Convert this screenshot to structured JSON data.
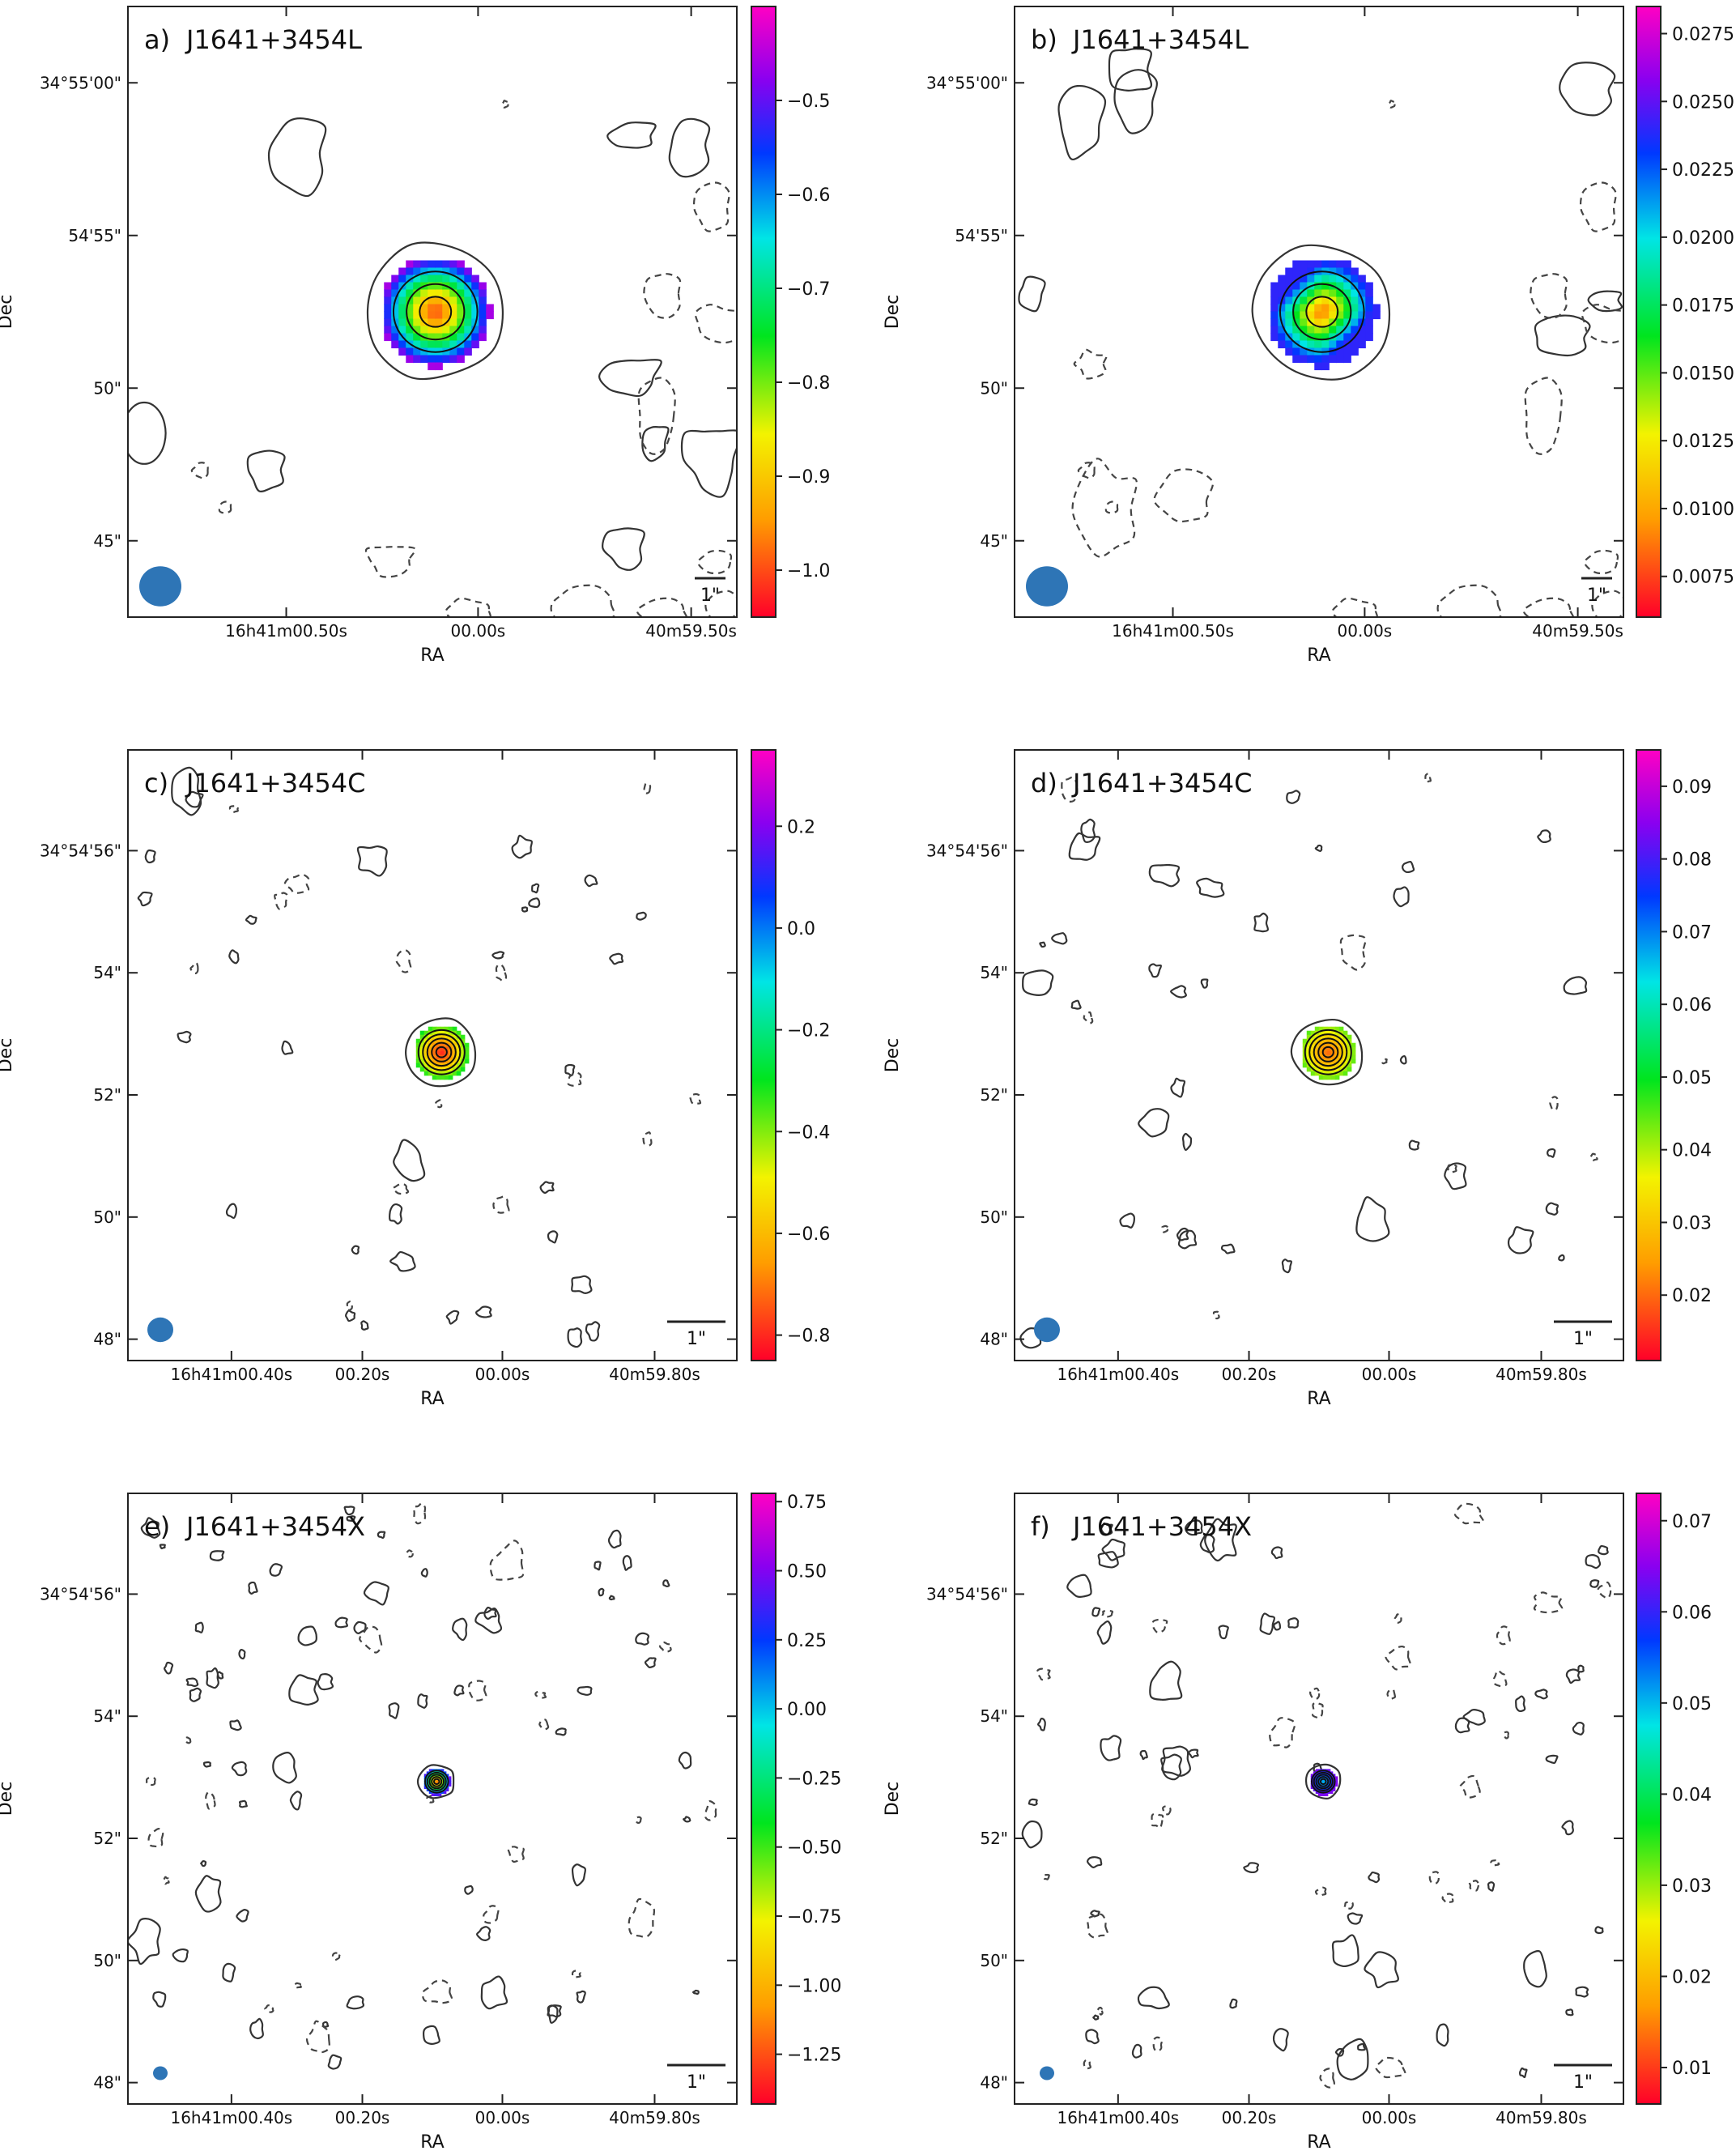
{
  "figure_title": "",
  "chart_data": [
    {
      "id": "a",
      "type": "heatmap",
      "label": "a)",
      "title": "J1641+3454L",
      "xlabel": "RA",
      "ylabel": "Dec",
      "xticks": [
        "16h41m00.50s",
        "00.00s",
        "40m59.50s"
      ],
      "yticks": [
        "34°55'00\"",
        "54'55\"",
        "50\"",
        "45\""
      ],
      "scalebar_label": "1\"",
      "colorbar": {
        "colormap": "gist_rainbow_r",
        "min": -1.05,
        "max": -0.4,
        "ticks": [
          -0.5,
          -0.6,
          -0.7,
          -0.8,
          -0.9,
          -1.0
        ],
        "tick_labels": [
          "−0.5",
          "−0.6",
          "−0.7",
          "−0.8",
          "−0.9",
          "−1.0"
        ]
      },
      "source_map": {
        "center_value": -1.0,
        "edge_value": -0.45,
        "pattern": "radial"
      },
      "beam": "large",
      "panel_kind": "L"
    },
    {
      "id": "b",
      "type": "heatmap",
      "label": "b)",
      "title": "J1641+3454L",
      "xlabel": "RA",
      "ylabel": "Dec",
      "xticks": [
        "16h41m00.50s",
        "00.00s",
        "40m59.50s"
      ],
      "yticks": [
        "34°55'00\"",
        "54'55\"",
        "50\"",
        "45\""
      ],
      "scalebar_label": "1\"",
      "colorbar": {
        "colormap": "gist_rainbow_r",
        "min": 0.006,
        "max": 0.0285,
        "ticks": [
          0.0275,
          0.025,
          0.0225,
          0.02,
          0.0175,
          0.015,
          0.0125,
          0.01,
          0.0075
        ],
        "tick_labels": [
          "0.0275",
          "0.0250",
          "0.0225",
          "0.0200",
          "0.0175",
          "0.0150",
          "0.0125",
          "0.0100",
          "0.0075"
        ]
      },
      "source_map": {
        "center_value": 0.008,
        "edge_value": 0.024,
        "pattern": "error"
      },
      "beam": "large",
      "panel_kind": "L"
    },
    {
      "id": "c",
      "type": "heatmap",
      "label": "c)",
      "title": "J1641+3454C",
      "xlabel": "RA",
      "ylabel": "Dec",
      "xticks": [
        "16h41m00.40s",
        "00.20s",
        "00.00s",
        "40m59.80s"
      ],
      "yticks": [
        "34°54'56\"",
        "54\"",
        "52\"",
        "50\"",
        "48\""
      ],
      "scalebar_label": "1\"",
      "colorbar": {
        "colormap": "gist_rainbow_r",
        "min": -0.85,
        "max": 0.35,
        "ticks": [
          0.2,
          0.0,
          -0.2,
          -0.4,
          -0.6,
          -0.8
        ],
        "tick_labels": [
          "0.2",
          "0.0",
          "−0.2",
          "−0.4",
          "−0.6",
          "−0.8"
        ]
      },
      "source_map": {
        "center_value": -0.8,
        "edge_value": -0.3,
        "pattern": "radial"
      },
      "beam": "medium",
      "panel_kind": "C"
    },
    {
      "id": "d",
      "type": "heatmap",
      "label": "d)",
      "title": "J1641+3454C",
      "xlabel": "RA",
      "ylabel": "Dec",
      "xticks": [
        "16h41m00.40s",
        "00.20s",
        "00.00s",
        "40m59.80s"
      ],
      "yticks": [
        "34°54'56\"",
        "54\"",
        "52\"",
        "50\"",
        "48\""
      ],
      "scalebar_label": "1\"",
      "colorbar": {
        "colormap": "gist_rainbow_r",
        "min": 0.011,
        "max": 0.095,
        "ticks": [
          0.09,
          0.08,
          0.07,
          0.06,
          0.05,
          0.04,
          0.03,
          0.02
        ],
        "tick_labels": [
          "0.09",
          "0.08",
          "0.07",
          "0.06",
          "0.05",
          "0.04",
          "0.03",
          "0.02"
        ]
      },
      "source_map": {
        "center_value": 0.02,
        "edge_value": 0.045,
        "pattern": "radial"
      },
      "beam": "medium",
      "panel_kind": "C"
    },
    {
      "id": "e",
      "type": "heatmap",
      "label": "e)",
      "title": "J1641+3454X",
      "xlabel": "RA",
      "ylabel": "Dec",
      "xticks": [
        "16h41m00.40s",
        "00.20s",
        "00.00s",
        "40m59.80s"
      ],
      "yticks": [
        "34°54'56\"",
        "54\"",
        "52\"",
        "50\"",
        "48\""
      ],
      "scalebar_label": "1\"",
      "colorbar": {
        "colormap": "gist_rainbow_r",
        "min": -1.43,
        "max": 0.78,
        "ticks": [
          0.75,
          0.5,
          0.25,
          0.0,
          -0.25,
          -0.5,
          -0.75,
          -1.0,
          -1.25
        ],
        "tick_labels": [
          "0.75",
          "0.50",
          "0.25",
          "0.00",
          "−0.25",
          "−0.50",
          "−0.75",
          "−1.00",
          "−1.25"
        ]
      },
      "source_map": {
        "center_value": -1.2,
        "edge_value": 0.5,
        "pattern": "radial"
      },
      "beam": "small",
      "panel_kind": "X"
    },
    {
      "id": "f",
      "type": "heatmap",
      "label": "f)",
      "title": "J1641+3454X",
      "xlabel": "RA",
      "ylabel": "Dec",
      "xticks": [
        "16h41m00.40s",
        "00.20s",
        "00.00s",
        "40m59.80s"
      ],
      "yticks": [
        "34°54'56\"",
        "54\"",
        "52\"",
        "50\"",
        "48\""
      ],
      "scalebar_label": "1\"",
      "colorbar": {
        "colormap": "gist_rainbow_r",
        "min": 0.006,
        "max": 0.073,
        "ticks": [
          0.07,
          0.06,
          0.05,
          0.04,
          0.03,
          0.02,
          0.01
        ],
        "tick_labels": [
          "0.07",
          "0.06",
          "0.05",
          "0.04",
          "0.03",
          "0.02",
          "0.01"
        ]
      },
      "source_map": {
        "center_value": 0.05,
        "edge_value": 0.065,
        "pattern": "radial"
      },
      "beam": "small",
      "panel_kind": "X"
    }
  ],
  "colors": {
    "beam": "#2e75b6",
    "frame": "#222222",
    "contour": "#333333"
  }
}
